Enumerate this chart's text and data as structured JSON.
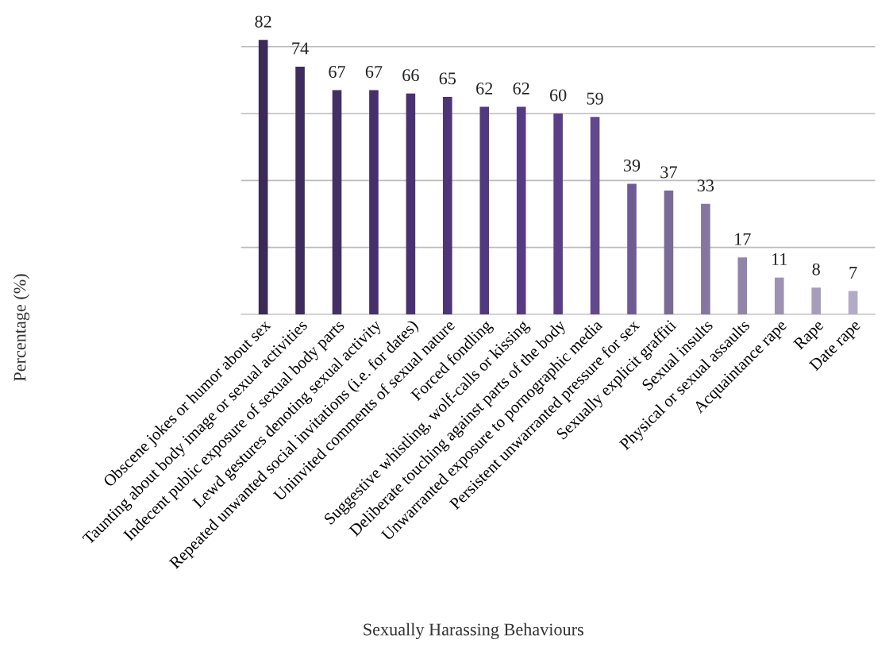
{
  "chart_data": {
    "type": "bar",
    "xlabel": "Sexually Harassing Behaviours",
    "ylabel": "Percentage (%)",
    "categories": [
      "Obscene jokes or humor about sex",
      "Taunting about body image or sexual activities",
      "Indecent public exposure of sexual body parts",
      "Lewd gestures denoting sexual activity",
      "Repeated unwanted social invitations (i.e. for dates)",
      "Uninvited comments of sexual nature",
      "Forced fondling",
      "Suggestive whistling, wolf-calls or kissing",
      "Deliberate touching against parts of the body",
      "Unwarranted exposure to pornographic media",
      "Persistent unwarranted pressure for sex",
      "Sexually explicit graffiti",
      "Sexual insults",
      "Physical or sexual assaults",
      "Acquaintance rape",
      "Rape",
      "Date rape"
    ],
    "values": [
      82,
      74,
      67,
      67,
      66,
      65,
      62,
      62,
      60,
      59,
      39,
      37,
      33,
      17,
      11,
      8,
      7
    ],
    "colors": [
      "#3a2a55",
      "#3f2c5e",
      "#432e66",
      "#46306c",
      "#4a3272",
      "#4e3578",
      "#52387e",
      "#563b83",
      "#5a3f88",
      "#62488e",
      "#6e5a94",
      "#7a6a98",
      "#84769f",
      "#9184a8",
      "#9d92b2",
      "#a79dbb",
      "#b3aac5"
    ],
    "data_labels": true,
    "yticks": [
      {
        "value": 0,
        "label": null
      },
      {
        "value": 20,
        "label": null
      },
      {
        "value": 40,
        "label": null
      },
      {
        "value": 60,
        "label": null
      },
      {
        "value": 80,
        "label": null
      }
    ],
    "grid": "y",
    "tick_labels": "x"
  }
}
